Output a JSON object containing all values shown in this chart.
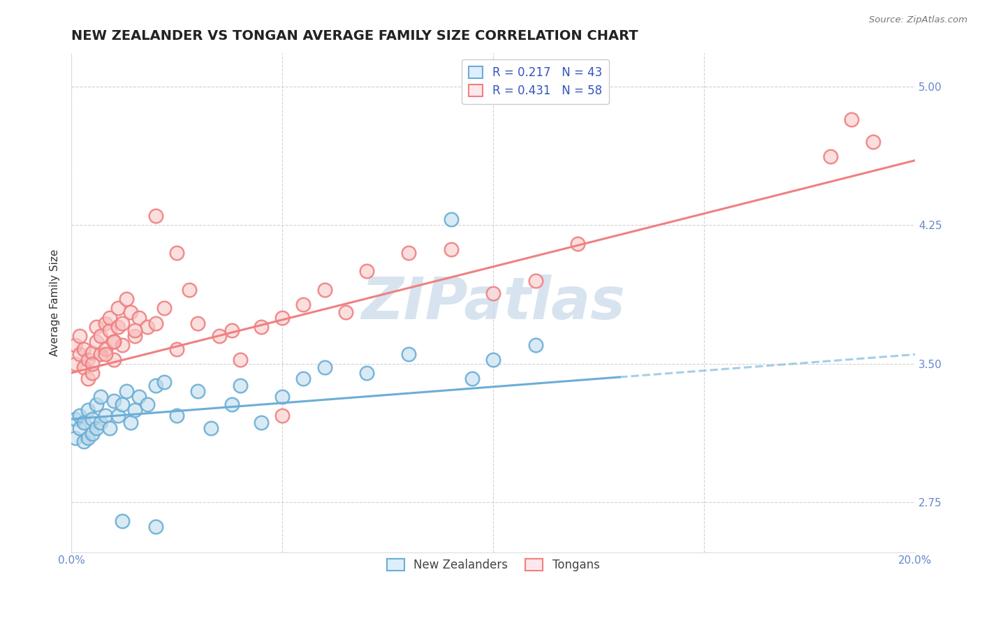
{
  "title": "NEW ZEALANDER VS TONGAN AVERAGE FAMILY SIZE CORRELATION CHART",
  "source_text": "Source: ZipAtlas.com",
  "ylabel": "Average Family Size",
  "xlim": [
    0.0,
    0.2
  ],
  "ylim": [
    2.48,
    5.18
  ],
  "yticks": [
    2.75,
    3.5,
    4.25,
    5.0
  ],
  "xticks": [
    0.0,
    0.05,
    0.1,
    0.15,
    0.2
  ],
  "xticklabels": [
    "0.0%",
    "",
    "",
    "",
    "20.0%"
  ],
  "nz_color": "#6BAED6",
  "tongan_color": "#F08080",
  "nz_R": 0.217,
  "nz_N": 43,
  "tongan_R": 0.431,
  "tongan_N": 58,
  "legend_label_nz": "New Zealanders",
  "legend_label_tongan": "Tongans",
  "watermark": "ZIPatlas",
  "watermark_color": "#C8D8EA",
  "nz_scatter_x": [
    0.001,
    0.001,
    0.002,
    0.002,
    0.003,
    0.003,
    0.004,
    0.004,
    0.005,
    0.005,
    0.006,
    0.006,
    0.007,
    0.007,
    0.008,
    0.009,
    0.01,
    0.011,
    0.012,
    0.013,
    0.014,
    0.015,
    0.016,
    0.018,
    0.02,
    0.022,
    0.025,
    0.03,
    0.033,
    0.038,
    0.04,
    0.045,
    0.05,
    0.055,
    0.06,
    0.07,
    0.08,
    0.1,
    0.11,
    0.012,
    0.02,
    0.09,
    0.095
  ],
  "nz_scatter_y": [
    3.2,
    3.1,
    3.15,
    3.22,
    3.08,
    3.18,
    3.25,
    3.1,
    3.2,
    3.12,
    3.28,
    3.15,
    3.32,
    3.18,
    3.22,
    3.15,
    3.3,
    3.22,
    3.28,
    3.35,
    3.18,
    3.25,
    3.32,
    3.28,
    3.38,
    3.4,
    3.22,
    3.35,
    3.15,
    3.28,
    3.38,
    3.18,
    3.32,
    3.42,
    3.48,
    3.45,
    3.55,
    3.52,
    3.6,
    2.65,
    2.62,
    4.28,
    3.42
  ],
  "tongan_scatter_x": [
    0.001,
    0.001,
    0.002,
    0.002,
    0.003,
    0.003,
    0.004,
    0.004,
    0.005,
    0.005,
    0.006,
    0.006,
    0.007,
    0.007,
    0.008,
    0.008,
    0.009,
    0.009,
    0.01,
    0.01,
    0.011,
    0.011,
    0.012,
    0.012,
    0.013,
    0.014,
    0.015,
    0.016,
    0.018,
    0.02,
    0.022,
    0.025,
    0.028,
    0.03,
    0.035,
    0.038,
    0.04,
    0.045,
    0.05,
    0.055,
    0.06,
    0.065,
    0.05,
    0.07,
    0.08,
    0.09,
    0.1,
    0.11,
    0.12,
    0.005,
    0.008,
    0.01,
    0.015,
    0.02,
    0.025,
    0.18,
    0.185,
    0.19
  ],
  "tongan_scatter_y": [
    3.5,
    3.6,
    3.55,
    3.65,
    3.48,
    3.58,
    3.52,
    3.42,
    3.56,
    3.45,
    3.62,
    3.7,
    3.65,
    3.55,
    3.72,
    3.58,
    3.68,
    3.75,
    3.52,
    3.62,
    3.7,
    3.8,
    3.6,
    3.72,
    3.85,
    3.78,
    3.65,
    3.75,
    3.7,
    3.72,
    3.8,
    3.58,
    3.9,
    3.72,
    3.65,
    3.68,
    3.52,
    3.7,
    3.75,
    3.82,
    3.9,
    3.78,
    3.22,
    4.0,
    4.1,
    4.12,
    3.88,
    3.95,
    4.15,
    3.5,
    3.55,
    3.62,
    3.68,
    4.3,
    4.1,
    4.62,
    4.82,
    4.7
  ],
  "nz_trend_x0": 0.0,
  "nz_trend_x_split": 0.13,
  "nz_trend_x1": 0.2,
  "nz_trend_y0": 3.2,
  "nz_trend_y1": 3.55,
  "tongan_trend_x0": 0.0,
  "tongan_trend_x1": 0.2,
  "tongan_trend_y0": 3.45,
  "tongan_trend_y1": 4.6,
  "grid_color": "#CCCCCC",
  "grid_style": "--",
  "background_color": "#FFFFFF",
  "title_fontsize": 14,
  "axis_label_fontsize": 11,
  "tick_fontsize": 11,
  "tick_color": "#6688CC",
  "legend_fontsize": 12
}
